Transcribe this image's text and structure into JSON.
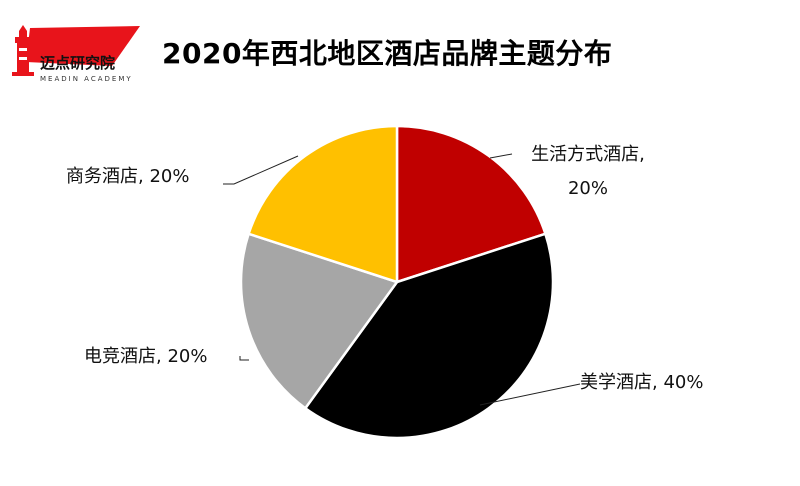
{
  "logo": {
    "brand_text": "迈点研究院",
    "sub_text": "MEADIN ACADEMY",
    "accent_color": "#e8141b",
    "icon": "lighthouse-icon"
  },
  "chart_data": {
    "type": "pie",
    "title": "2020年西北地区酒店品牌主题分布",
    "slices": [
      {
        "name": "生活方式酒店",
        "value": 20,
        "percent_label": "20%",
        "color": "#c00000"
      },
      {
        "name": "美学酒店",
        "value": 40,
        "percent_label": "40%",
        "color": "#000000"
      },
      {
        "name": "电竞酒店",
        "value": 20,
        "percent_label": "20%",
        "color": "#a6a6a6"
      },
      {
        "name": "商务酒店",
        "value": 20,
        "percent_label": "20%",
        "color": "#ffc000"
      }
    ],
    "legend": "none",
    "data_labels": "outside-with-leader-lines"
  }
}
